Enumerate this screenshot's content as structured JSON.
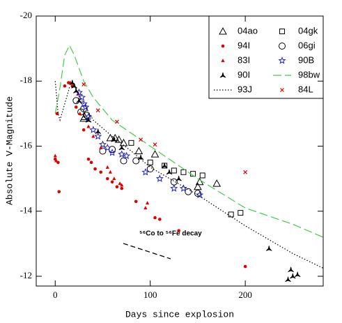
{
  "chart_data": {
    "type": "scatter",
    "xlabel": "Days since explosion",
    "ylabel": "Absolute V-Magnitude",
    "xlim": [
      -20,
      282
    ],
    "ylim": [
      -11.7,
      -20
    ],
    "xticks": [
      0,
      100,
      200
    ],
    "yticks": [
      -20,
      -18,
      -16,
      -14,
      -12
    ],
    "annotation": "⁵⁶Co to ⁵⁶Fe decay",
    "legend": "upper right",
    "series": [
      {
        "name": "04ao",
        "color": "#000000",
        "marker": "triangle-open",
        "x": [
          30,
          31,
          58,
          63,
          67,
          72,
          88,
          105,
          150,
          152,
          170
        ],
        "values": [
          -16.85,
          -16.9,
          -16.25,
          -16.25,
          -16.2,
          -16.1,
          -15.85,
          -15.75,
          -14.75,
          -14.9,
          -14.85
        ]
      },
      {
        "name": "04gk",
        "color": "#000000",
        "marker": "square-open",
        "x": [
          80,
          100,
          115,
          125,
          135,
          145,
          155,
          185,
          195
        ],
        "values": [
          -16.1,
          -15.5,
          -15.4,
          -15.25,
          -15.2,
          -15.15,
          -15.1,
          -13.9,
          -13.95
        ]
      },
      {
        "name": "94I",
        "color": "#e00000",
        "marker": "dot",
        "x": [
          0,
          2,
          3,
          4,
          10,
          14,
          18,
          22,
          30,
          35,
          38,
          42,
          48,
          55,
          60,
          65,
          70,
          85,
          105,
          110,
          130,
          200
        ],
        "values": [
          -15.6,
          -17,
          -15.5,
          -14.6,
          -17.85,
          -17.95,
          -17.85,
          -17.2,
          -16.5,
          -15.6,
          -15.5,
          -15.3,
          -15.2,
          -15.0,
          -14.9,
          -14.75,
          -14.7,
          -14.3,
          -13.8,
          -13.75,
          -13.4,
          -12.3
        ]
      },
      {
        "name": "06gi",
        "color": "#000000",
        "marker": "circle-open",
        "x": [
          22,
          27,
          30,
          33,
          50,
          60,
          72,
          85,
          100,
          125,
          140,
          150
        ],
        "values": [
          -17.4,
          -17.05,
          -17.15,
          -16.95,
          -15.85,
          -15.9,
          -15.55,
          -15.55,
          -15.3,
          -14.9,
          -14.6,
          -14.55
        ]
      },
      {
        "name": "83I",
        "color": "#e00000",
        "marker": "triangle-filled",
        "x": [
          0,
          1,
          16,
          20,
          24,
          26,
          35,
          40,
          48,
          55,
          58,
          62,
          68,
          70,
          95,
          97
        ],
        "values": [
          -15.7,
          -15.55,
          -17.95,
          -17.85,
          -17.6,
          -17.0,
          -16.6,
          -16.3,
          -15.95,
          -15.35,
          -15.2,
          -15.0,
          -14.85,
          -14.8,
          -14.1,
          -14.25
        ]
      },
      {
        "name": "90B",
        "color": "#2020d0",
        "marker": "star-open",
        "x": [
          25,
          28,
          30,
          32,
          35,
          40,
          45,
          50,
          55,
          60,
          70,
          75,
          95,
          110,
          125,
          135,
          152
        ],
        "values": [
          -17.65,
          -17.5,
          -17.3,
          -17.2,
          -16.9,
          -16.5,
          -16.3,
          -16.05,
          -15.95,
          -15.8,
          -15.75,
          -15.7,
          -15.2,
          -15.0,
          -14.7,
          -14.7,
          -14.5
        ]
      },
      {
        "name": "90I",
        "color": "#000000",
        "marker": "tristar",
        "x": [
          18,
          20,
          22,
          25,
          35,
          45,
          62,
          70,
          90,
          115,
          120,
          130,
          225,
          245,
          248,
          250,
          255
        ],
        "values": [
          -17.95,
          -17.85,
          -17.7,
          -17.4,
          -16.8,
          -16.45,
          -16.2,
          -15.95,
          -15.65,
          -15.4,
          -15.2,
          -15.0,
          -12.85,
          -11.9,
          -12.2,
          -12.0,
          -12.05
        ]
      },
      {
        "name": "98bw",
        "color": "#44cc44",
        "marker": "line",
        "line_style": "dashed",
        "x": [
          0,
          5,
          10,
          15,
          20,
          30,
          40,
          60,
          80,
          100,
          150,
          200,
          250,
          282
        ],
        "values": [
          -17,
          -17.8,
          -18.8,
          -19.1,
          -18.8,
          -18.0,
          -17.5,
          -16.8,
          -16.4,
          -16.0,
          -15.0,
          -14.1,
          -13.6,
          -13.2
        ]
      },
      {
        "name": "93J",
        "color": "#000000",
        "marker": "line",
        "line_style": "dotted",
        "x": [
          0,
          3,
          5,
          10,
          15,
          20,
          30,
          40,
          60,
          80,
          100,
          150,
          200,
          250,
          282
        ],
        "values": [
          -18,
          -17.0,
          -16.8,
          -17.3,
          -17.8,
          -17.85,
          -17.3,
          -16.8,
          -16.3,
          -15.85,
          -15.35,
          -14.5,
          -13.55,
          -12.7,
          -12.25
        ]
      },
      {
        "name": "84L",
        "color": "#e00000",
        "marker": "cross",
        "x": [
          30,
          45,
          65,
          90,
          105,
          200
        ],
        "values": [
          -17.9,
          -17.1,
          -16.75,
          -16.2,
          -16.05,
          -15.2
        ]
      }
    ]
  }
}
